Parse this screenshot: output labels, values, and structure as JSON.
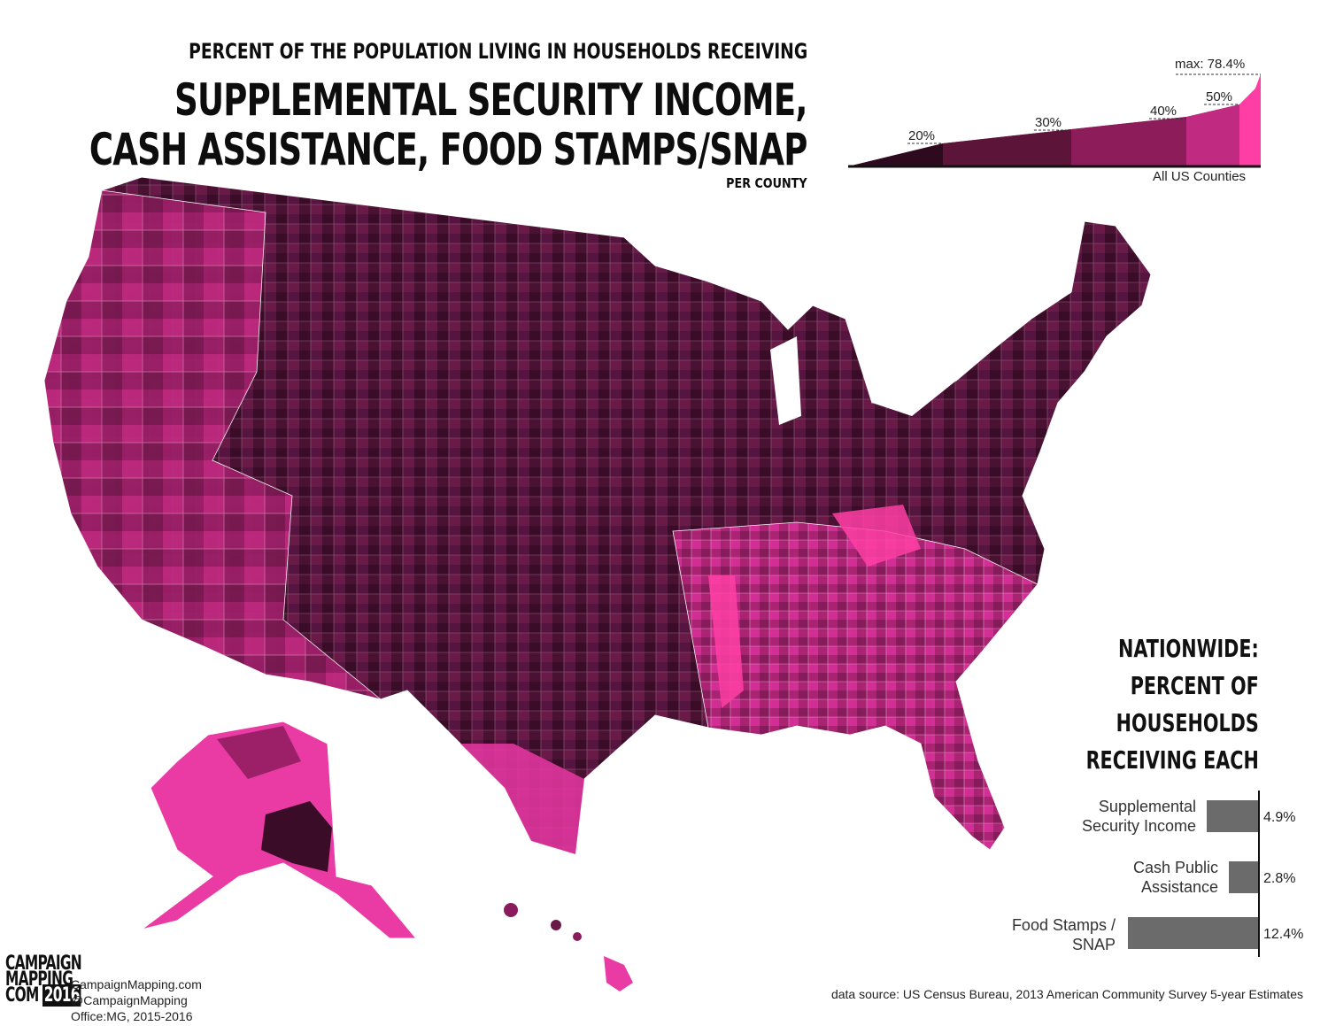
{
  "title": {
    "line1": "PERCENT OF THE POPULATION LIVING IN HOUSEHOLDS RECEIVING",
    "line2": "SUPPLEMENTAL SECURITY INCOME,",
    "line3": "CASH ASSISTANCE, FOOD STAMPS/SNAP",
    "line4": "PER COUNTY"
  },
  "legend": {
    "max_label": "max: 78.4%",
    "ticks": [
      "20%",
      "30%",
      "40%",
      "50%"
    ],
    "caption": "All US Counties",
    "colors": [
      "#2e0a1e",
      "#5c1438",
      "#8c1d5a",
      "#c02a80",
      "#ff3ea5"
    ]
  },
  "nationwide": {
    "heading": [
      "NATIONWIDE:",
      "PERCENT OF",
      "HOUSEHOLDS",
      "RECEIVING EACH"
    ],
    "bars": [
      {
        "label1": "Supplemental",
        "label2": "Security Income",
        "value": 4.9,
        "value_label": "4.9%"
      },
      {
        "label1": "Cash Public",
        "label2": "Assistance",
        "value": 2.8,
        "value_label": "2.8%"
      },
      {
        "label1": "Food Stamps /",
        "label2": "SNAP",
        "value": 12.4,
        "value_label": "12.4%"
      }
    ]
  },
  "footer": {
    "logo": [
      "CAMPAIGN",
      "MAPPING",
      "COM",
      "2016"
    ],
    "credits": [
      "CampaignMapping.com",
      "@CampaignMapping",
      "Office:MG, 2015-2016"
    ],
    "source": "data source: US Census Bureau, 2013 American Community Survey 5-year Estimates"
  }
}
